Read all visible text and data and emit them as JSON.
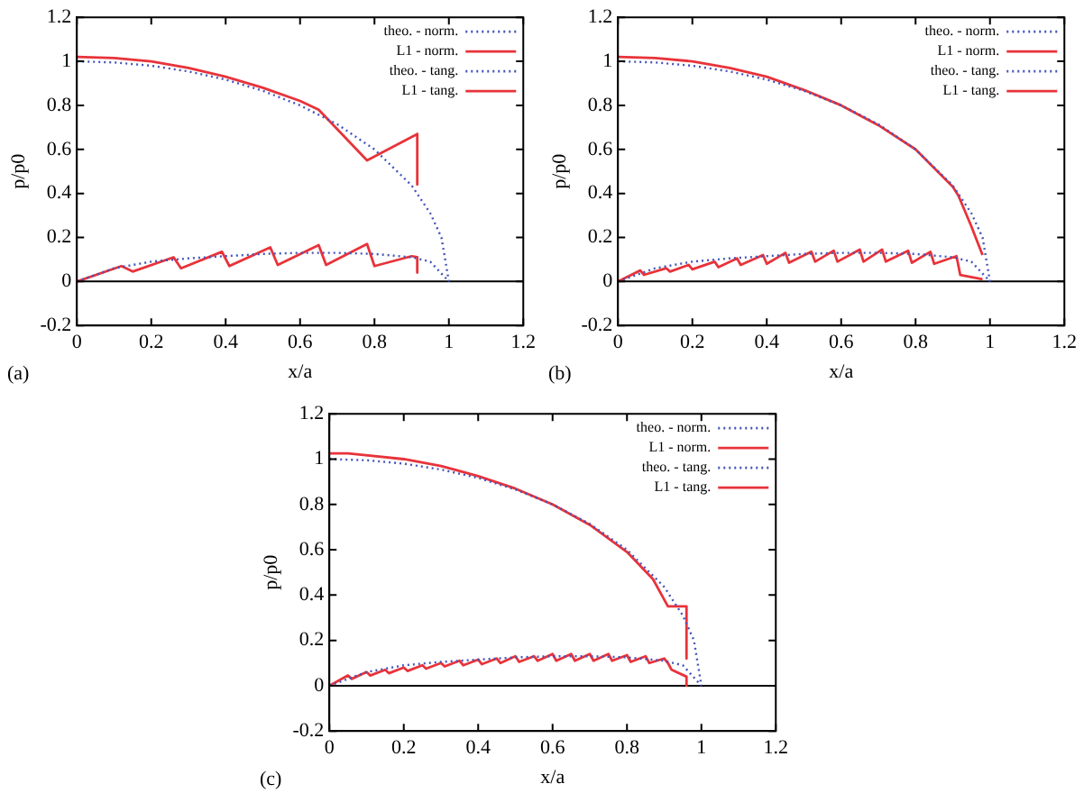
{
  "chart_data": [
    {
      "type": "line",
      "xlabel": "x/a",
      "ylabel": "p/p0",
      "annotations": [
        "(a)"
      ],
      "xlim": [
        0,
        1.2
      ],
      "ylim": [
        -0.2,
        1.2
      ],
      "xticks": [
        0,
        0.2,
        0.4,
        0.6,
        0.8,
        1,
        1.2
      ],
      "yticks": [
        -0.2,
        0,
        0.2,
        0.4,
        0.6,
        0.8,
        1,
        1.2
      ],
      "legend": "top right",
      "ref_lines": [
        {
          "axis": "y",
          "value": 0,
          "color": "#000000"
        }
      ],
      "series": [
        {
          "name": "theo. - norm.",
          "color": "#4455bb",
          "line_style": "dotted",
          "x": [
            0,
            0.1,
            0.2,
            0.3,
            0.4,
            0.5,
            0.6,
            0.7,
            0.8,
            0.9,
            0.95,
            0.98,
            1.0
          ],
          "values": [
            1.0,
            0.995,
            0.98,
            0.954,
            0.917,
            0.866,
            0.8,
            0.714,
            0.6,
            0.436,
            0.31,
            0.2,
            0
          ]
        },
        {
          "name": "L1 - norm.",
          "color": "#e8333a",
          "line_style": "solid",
          "x": [
            0,
            0.1,
            0.2,
            0.3,
            0.4,
            0.5,
            0.6,
            0.65,
            0.78,
            0.915,
            0.915
          ],
          "values": [
            1.02,
            1.015,
            1.0,
            0.97,
            0.93,
            0.88,
            0.82,
            0.78,
            0.55,
            0.67,
            0.44
          ]
        },
        {
          "name": "theo. - tang.",
          "color": "#4455bb",
          "line_style": "dotted",
          "x": [
            0,
            0.1,
            0.2,
            0.3,
            0.4,
            0.5,
            0.6,
            0.7,
            0.8,
            0.9,
            0.95,
            1.0
          ],
          "values": [
            0,
            0.06,
            0.09,
            0.105,
            0.115,
            0.125,
            0.13,
            0.13,
            0.125,
            0.11,
            0.09,
            0
          ]
        },
        {
          "name": "L1 - tang.",
          "color": "#e8333a",
          "line_style": "solid",
          "x": [
            0,
            0.12,
            0.15,
            0.26,
            0.28,
            0.39,
            0.41,
            0.52,
            0.54,
            0.65,
            0.67,
            0.78,
            0.8,
            0.9,
            0.915,
            0.915
          ],
          "values": [
            0,
            0.07,
            0.045,
            0.11,
            0.06,
            0.135,
            0.07,
            0.155,
            0.075,
            0.165,
            0.075,
            0.17,
            0.07,
            0.115,
            0.11,
            0.04
          ]
        }
      ]
    },
    {
      "type": "line",
      "xlabel": "x/a",
      "ylabel": "p/p0",
      "annotations": [
        "(b)"
      ],
      "xlim": [
        0,
        1.2
      ],
      "ylim": [
        -0.2,
        1.2
      ],
      "xticks": [
        0,
        0.2,
        0.4,
        0.6,
        0.8,
        1,
        1.2
      ],
      "yticks": [
        -0.2,
        0,
        0.2,
        0.4,
        0.6,
        0.8,
        1,
        1.2
      ],
      "legend": "top right",
      "ref_lines": [
        {
          "axis": "y",
          "value": 0,
          "color": "#000000"
        }
      ],
      "series": [
        {
          "name": "theo. - norm.",
          "color": "#4455bb",
          "line_style": "dotted",
          "x": [
            0,
            0.1,
            0.2,
            0.3,
            0.4,
            0.5,
            0.6,
            0.7,
            0.8,
            0.9,
            0.95,
            0.98,
            1.0
          ],
          "values": [
            1.0,
            0.995,
            0.98,
            0.954,
            0.917,
            0.866,
            0.8,
            0.714,
            0.6,
            0.436,
            0.31,
            0.2,
            0
          ]
        },
        {
          "name": "L1 - norm.",
          "color": "#e8333a",
          "line_style": "solid",
          "x": [
            0,
            0.1,
            0.2,
            0.3,
            0.4,
            0.5,
            0.6,
            0.7,
            0.8,
            0.9,
            0.915,
            0.95,
            0.98
          ],
          "values": [
            1.02,
            1.015,
            1.0,
            0.97,
            0.93,
            0.87,
            0.8,
            0.71,
            0.6,
            0.43,
            0.39,
            0.25,
            0.12
          ]
        },
        {
          "name": "theo. - tang.",
          "color": "#4455bb",
          "line_style": "dotted",
          "x": [
            0,
            0.1,
            0.2,
            0.3,
            0.4,
            0.5,
            0.6,
            0.7,
            0.8,
            0.9,
            0.95,
            1.0
          ],
          "values": [
            0,
            0.06,
            0.09,
            0.105,
            0.115,
            0.125,
            0.13,
            0.13,
            0.125,
            0.11,
            0.09,
            0
          ]
        },
        {
          "name": "L1 - tang.",
          "color": "#e8333a",
          "line_style": "solid",
          "x": [
            0,
            0.06,
            0.07,
            0.13,
            0.14,
            0.19,
            0.2,
            0.26,
            0.27,
            0.32,
            0.33,
            0.39,
            0.4,
            0.45,
            0.46,
            0.52,
            0.53,
            0.58,
            0.59,
            0.65,
            0.66,
            0.71,
            0.72,
            0.78,
            0.79,
            0.84,
            0.85,
            0.91,
            0.92,
            0.98
          ],
          "values": [
            0,
            0.05,
            0.03,
            0.06,
            0.045,
            0.075,
            0.055,
            0.09,
            0.065,
            0.105,
            0.075,
            0.12,
            0.08,
            0.13,
            0.085,
            0.135,
            0.09,
            0.14,
            0.09,
            0.145,
            0.09,
            0.145,
            0.09,
            0.14,
            0.085,
            0.135,
            0.08,
            0.115,
            0.03,
            0.01
          ]
        }
      ]
    },
    {
      "type": "line",
      "xlabel": "x/a",
      "ylabel": "p/p0",
      "annotations": [
        "(c)"
      ],
      "xlim": [
        0,
        1.2
      ],
      "ylim": [
        -0.2,
        1.2
      ],
      "xticks": [
        0,
        0.2,
        0.4,
        0.6,
        0.8,
        1,
        1.2
      ],
      "yticks": [
        -0.2,
        0,
        0.2,
        0.4,
        0.6,
        0.8,
        1,
        1.2
      ],
      "legend": "top right",
      "ref_lines": [
        {
          "axis": "y",
          "value": 0,
          "color": "#000000"
        }
      ],
      "series": [
        {
          "name": "theo. - norm.",
          "color": "#4455bb",
          "line_style": "dotted",
          "x": [
            0,
            0.1,
            0.2,
            0.3,
            0.4,
            0.5,
            0.6,
            0.7,
            0.8,
            0.9,
            0.95,
            0.98,
            1.0
          ],
          "values": [
            1.0,
            0.995,
            0.98,
            0.954,
            0.917,
            0.866,
            0.8,
            0.714,
            0.6,
            0.436,
            0.31,
            0.2,
            0
          ]
        },
        {
          "name": "L1 - norm.",
          "color": "#e8333a",
          "line_style": "solid",
          "x": [
            0,
            0.05,
            0.2,
            0.3,
            0.4,
            0.5,
            0.6,
            0.7,
            0.8,
            0.87,
            0.91,
            0.96,
            0.96
          ],
          "values": [
            1.025,
            1.025,
            1.0,
            0.97,
            0.925,
            0.87,
            0.8,
            0.71,
            0.59,
            0.47,
            0.35,
            0.35,
            0.12
          ]
        },
        {
          "name": "theo. - tang.",
          "color": "#4455bb",
          "line_style": "dotted",
          "x": [
            0,
            0.1,
            0.2,
            0.3,
            0.4,
            0.5,
            0.6,
            0.7,
            0.8,
            0.9,
            0.95,
            1.0
          ],
          "values": [
            0,
            0.06,
            0.09,
            0.105,
            0.115,
            0.125,
            0.13,
            0.13,
            0.125,
            0.11,
            0.09,
            0
          ]
        },
        {
          "name": "L1 - tang.",
          "color": "#e8333a",
          "line_style": "solid",
          "x": [
            0,
            0.05,
            0.06,
            0.1,
            0.11,
            0.15,
            0.16,
            0.2,
            0.21,
            0.25,
            0.26,
            0.3,
            0.31,
            0.35,
            0.36,
            0.4,
            0.41,
            0.45,
            0.46,
            0.5,
            0.51,
            0.55,
            0.56,
            0.6,
            0.61,
            0.65,
            0.66,
            0.7,
            0.71,
            0.75,
            0.76,
            0.8,
            0.81,
            0.85,
            0.86,
            0.9,
            0.91,
            0.92,
            0.96,
            0.96
          ],
          "values": [
            0,
            0.045,
            0.03,
            0.06,
            0.045,
            0.07,
            0.055,
            0.08,
            0.065,
            0.09,
            0.075,
            0.1,
            0.085,
            0.11,
            0.09,
            0.115,
            0.095,
            0.12,
            0.1,
            0.13,
            0.105,
            0.13,
            0.11,
            0.14,
            0.11,
            0.14,
            0.11,
            0.14,
            0.11,
            0.14,
            0.11,
            0.135,
            0.105,
            0.13,
            0.1,
            0.12,
            0.1,
            0.07,
            0.04,
            0
          ]
        }
      ]
    }
  ]
}
